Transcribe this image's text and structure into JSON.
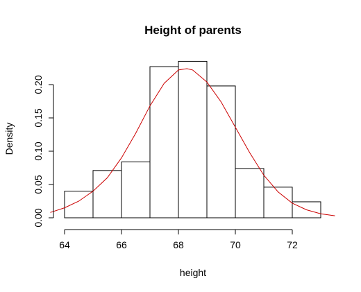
{
  "chart_data": {
    "type": "bar",
    "subtype": "histogram",
    "title": "Height of parents",
    "xlabel": "height",
    "ylabel": "Density",
    "bin_edges": [
      64,
      65,
      66,
      67,
      68,
      69,
      70,
      71,
      72,
      73
    ],
    "values": [
      0.04,
      0.071,
      0.084,
      0.227,
      0.235,
      0.198,
      0.074,
      0.046,
      0.024
    ],
    "density_curve": {
      "x": [
        63.5,
        64,
        64.5,
        65,
        65.5,
        66,
        66.5,
        67,
        67.5,
        68,
        68.3,
        68.5,
        69,
        69.5,
        70,
        70.5,
        71,
        71.5,
        72,
        72.5,
        73,
        73.5
      ],
      "y": [
        0.008,
        0.015,
        0.025,
        0.04,
        0.06,
        0.09,
        0.127,
        0.168,
        0.202,
        0.222,
        0.224,
        0.222,
        0.204,
        0.174,
        0.136,
        0.098,
        0.064,
        0.039,
        0.022,
        0.012,
        0.006,
        0.003
      ],
      "color": "#cc0000"
    },
    "x_ticks": [
      64,
      66,
      68,
      70,
      72
    ],
    "x_tick_labels": [
      "64",
      "66",
      "68",
      "70",
      "72"
    ],
    "y_ticks": [
      0.0,
      0.05,
      0.1,
      0.15,
      0.2
    ],
    "y_tick_labels": [
      "0.00",
      "0.05",
      "0.10",
      "0.15",
      "0.20"
    ],
    "xlim": [
      63.5,
      73.5
    ],
    "ylim": [
      0,
      0.235
    ],
    "grid": false,
    "bar_fill": "#ffffff",
    "bar_stroke": "#000000"
  }
}
